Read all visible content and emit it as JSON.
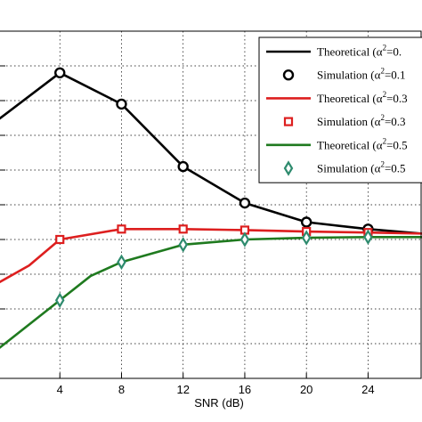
{
  "chart_data": {
    "type": "line",
    "xlabel": "SNR (dB)",
    "ylabel": "",
    "title": "",
    "x_ticks": [
      "4",
      "8",
      "12",
      "16",
      "20",
      "24"
    ],
    "xlim": [
      0,
      27.5
    ],
    "ylim": [
      0,
      10
    ],
    "grid": true,
    "grid_style": "dotted",
    "legend_position": "top-right",
    "legend": [
      {
        "label_prefix": "Theoretical  (α",
        "label_tail": "=0.",
        "style": "line",
        "color": "#000000"
      },
      {
        "label_prefix": "Simulation  (α",
        "label_tail": "=0.1",
        "style": "circle",
        "color": "#000000"
      },
      {
        "label_prefix": "Theoretical  (α",
        "label_tail": "=0.3",
        "style": "line",
        "color": "#dd1f1f"
      },
      {
        "label_prefix": "Simulation  (α",
        "label_tail": "=0.3",
        "style": "square",
        "color": "#dd1f1f"
      },
      {
        "label_prefix": "Theoretical  (α",
        "label_tail": "=0.5",
        "style": "line",
        "color": "#1f7a1f"
      },
      {
        "label_prefix": "Simulation  (α",
        "label_tail": "=0.5",
        "style": "diamond",
        "color": "#2e8b6e"
      }
    ],
    "superscript": "2",
    "series": [
      {
        "line_color": "#000000",
        "marker": "circle",
        "marker_color": "#000000",
        "x": [
          0,
          4,
          8,
          12,
          16,
          20,
          24,
          27.5
        ],
        "y": [
          7.45,
          8.8,
          7.9,
          6.1,
          5.05,
          4.5,
          4.3,
          4.17
        ],
        "marker_x": [
          4,
          8,
          12,
          16,
          20,
          24
        ]
      },
      {
        "line_color": "#dd1f1f",
        "marker": "square",
        "marker_color": "#dd1f1f",
        "x": [
          0,
          2,
          4,
          8,
          12,
          16,
          20,
          24,
          27.5
        ],
        "y": [
          2.75,
          3.25,
          4.0,
          4.3,
          4.3,
          4.27,
          4.23,
          4.2,
          4.17
        ],
        "marker_x": [
          4,
          8,
          12,
          16,
          20,
          24
        ]
      },
      {
        "line_color": "#1f7a1f",
        "marker": "diamond",
        "marker_color": "#2e8b6e",
        "x": [
          0,
          4,
          6,
          8,
          12,
          16,
          20,
          24,
          27.5
        ],
        "y": [
          0.85,
          2.25,
          2.95,
          3.35,
          3.85,
          4.0,
          4.05,
          4.07,
          4.07
        ],
        "marker_x": [
          4,
          8,
          12,
          16,
          20,
          24
        ]
      }
    ]
  }
}
